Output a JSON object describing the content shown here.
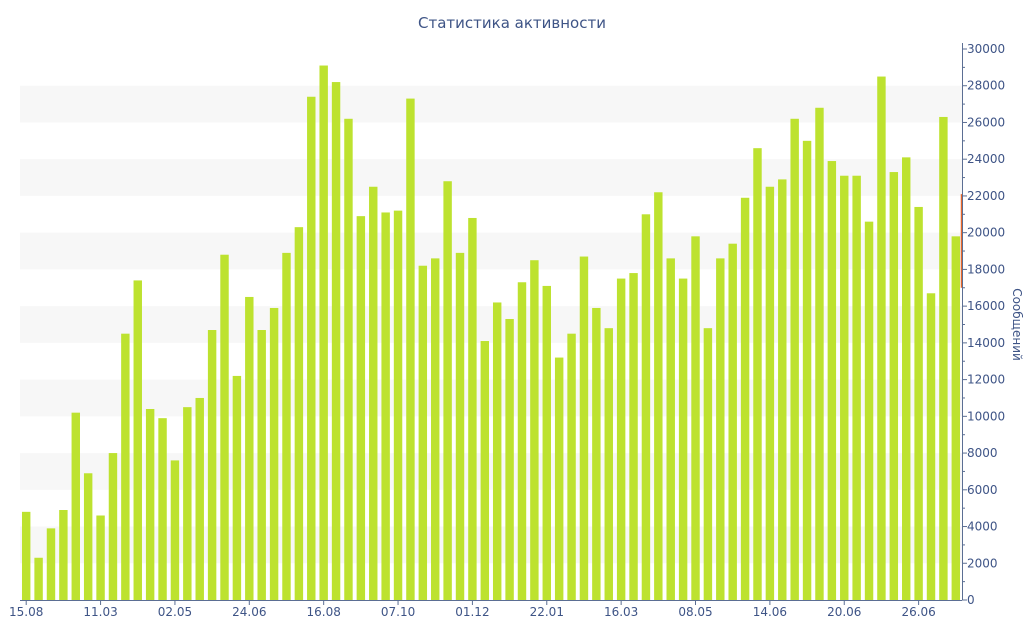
{
  "chart_data": {
    "type": "bar",
    "title": "Статистика активности",
    "ylabel": "Сообщений",
    "xlabel": "",
    "ylim": [
      0,
      30000
    ],
    "y_ticks": [
      0,
      2000,
      4000,
      6000,
      8000,
      10000,
      12000,
      14000,
      16000,
      18000,
      20000,
      22000,
      24000,
      26000,
      28000,
      30000
    ],
    "x_tick_labels": [
      {
        "index": 0,
        "label": "15.08"
      },
      {
        "index": 6,
        "label": "11.03"
      },
      {
        "index": 12,
        "label": "02.05"
      },
      {
        "index": 18,
        "label": "24.06"
      },
      {
        "index": 24,
        "label": "16.08"
      },
      {
        "index": 30,
        "label": "07.10"
      },
      {
        "index": 36,
        "label": "01.12"
      },
      {
        "index": 42,
        "label": "22.01"
      },
      {
        "index": 48,
        "label": "16.03"
      },
      {
        "index": 54,
        "label": "08.05"
      },
      {
        "index": 60,
        "label": "14.06"
      },
      {
        "index": 66,
        "label": "20.06"
      },
      {
        "index": 72,
        "label": "26.06"
      }
    ],
    "grid_bands": true,
    "legend": "none",
    "bar_color": "#bde22f",
    "highlight_color": "#e6672c",
    "values": [
      4800,
      2300,
      3900,
      4900,
      10200,
      6900,
      4600,
      8000,
      14500,
      17400,
      10400,
      9900,
      7600,
      10500,
      11000,
      14700,
      18800,
      12200,
      16500,
      14700,
      15900,
      18900,
      20300,
      27400,
      29100,
      28200,
      26200,
      20900,
      22500,
      21100,
      21200,
      27300,
      18200,
      18600,
      22800,
      18900,
      20800,
      14100,
      16200,
      15300,
      17300,
      18500,
      17100,
      13200,
      14500,
      18700,
      15900,
      14800,
      17500,
      17800,
      21000,
      22200,
      18600,
      17500,
      19800,
      14800,
      18600,
      19400,
      21900,
      24600,
      22500,
      22900,
      26200,
      25000,
      26800,
      23900,
      23100,
      23100,
      20600,
      28500,
      23300,
      24100,
      21400,
      16700,
      26300,
      19800
    ],
    "last_bar_range": [
      17000,
      22100
    ]
  }
}
